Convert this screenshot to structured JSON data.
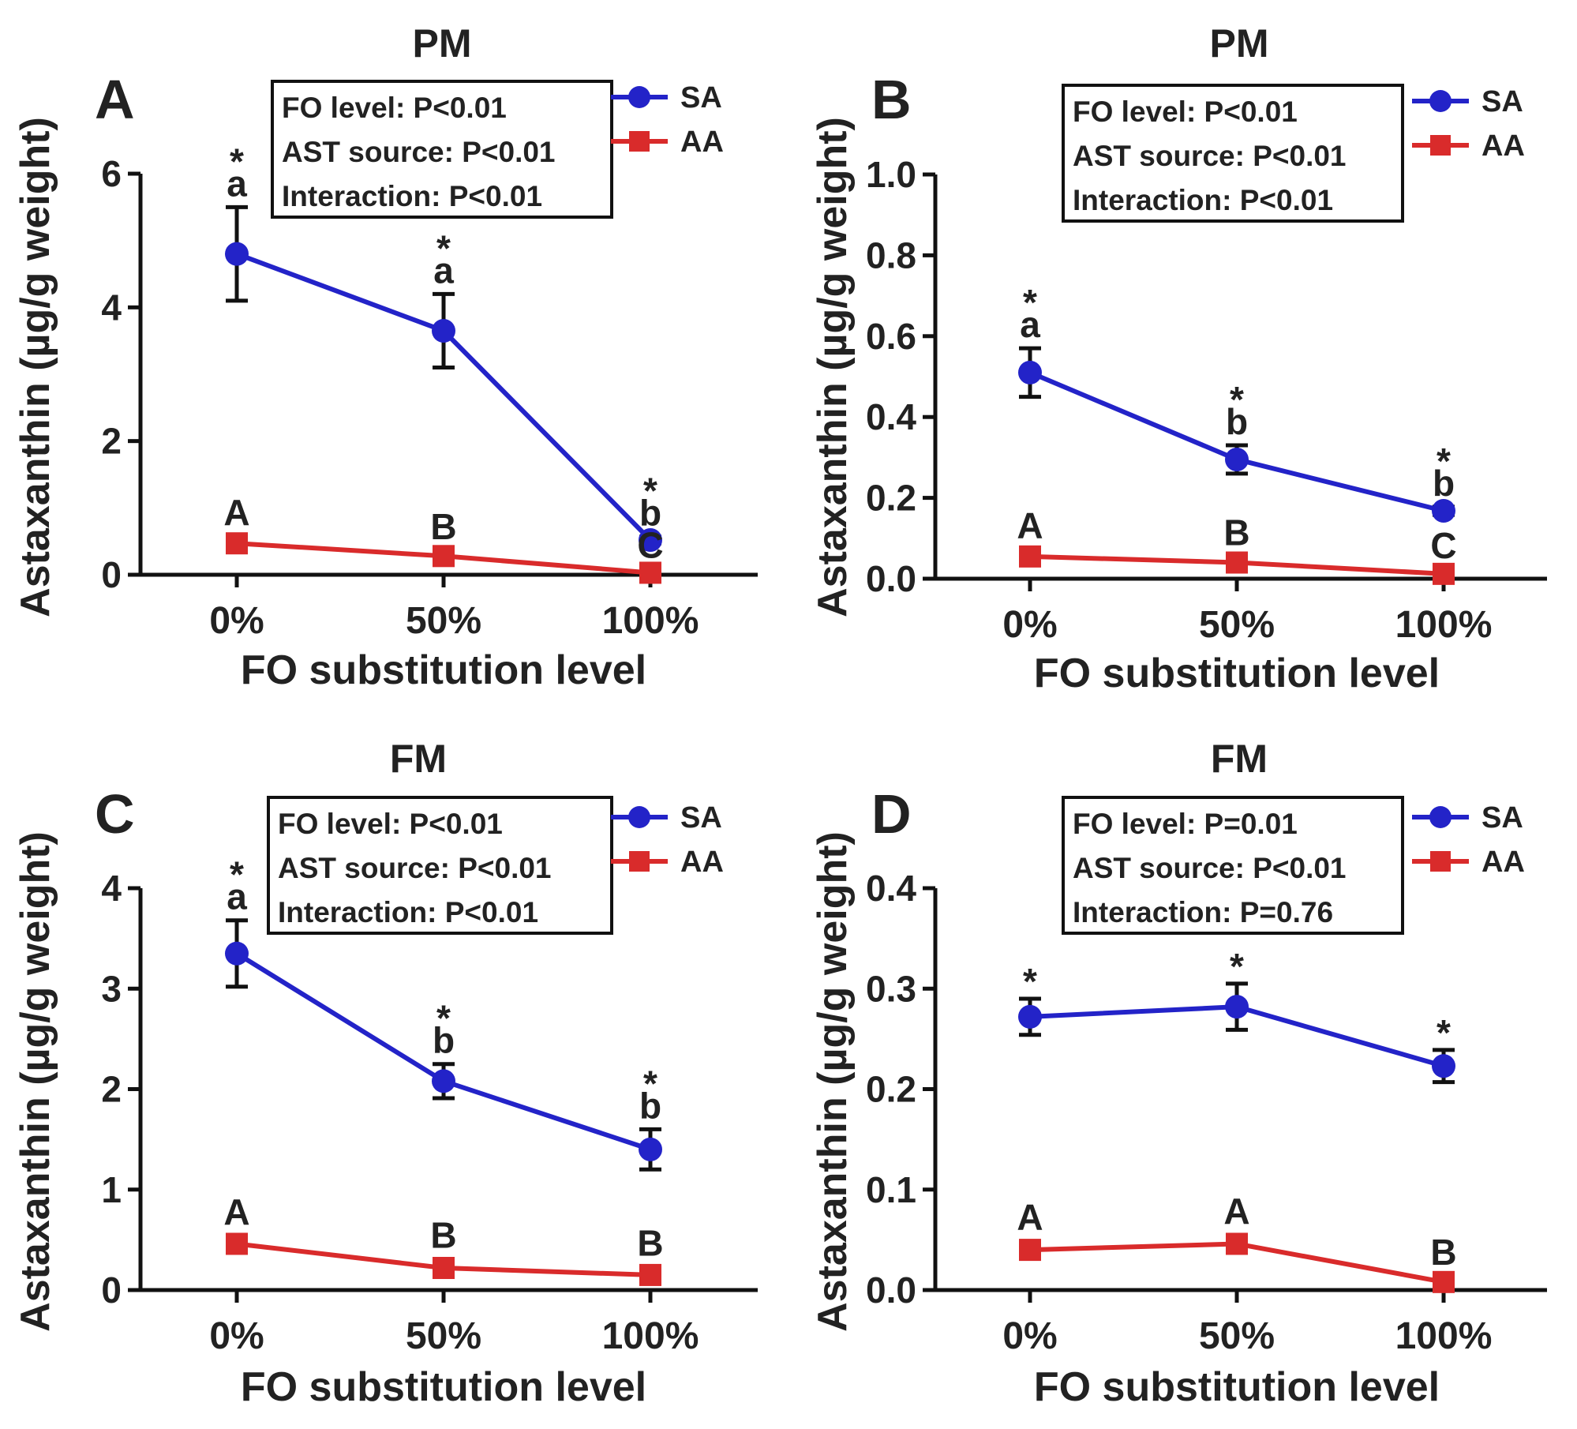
{
  "chart_data": [
    {
      "type": "line",
      "panel": "A",
      "title": "PM",
      "xlabel": "FO substitution level",
      "ylabel": "Astaxanthin (µg/g weight)",
      "categories": [
        "0%",
        "50%",
        "100%"
      ],
      "ylim": [
        0,
        6
      ],
      "yticks": [
        "0",
        "2",
        "4",
        "6"
      ],
      "series": [
        {
          "name": "SA",
          "color": "#2323c8",
          "marker": "circle",
          "values": [
            4.8,
            3.65,
            0.52
          ],
          "errors": [
            0.7,
            0.55,
            0.05
          ],
          "significance": [
            "*",
            "*",
            "*"
          ],
          "letters": [
            "a",
            "a",
            "b"
          ]
        },
        {
          "name": "AA",
          "color": "#d92b2b",
          "marker": "square",
          "values": [
            0.47,
            0.28,
            0.03
          ],
          "errors": [
            0.06,
            0.04,
            0.01
          ],
          "letters": [
            "A",
            "B",
            "C"
          ]
        }
      ],
      "stats": [
        "FO level: P<0.01",
        "AST source: P<0.01",
        "Interaction: P<0.01"
      ]
    },
    {
      "type": "line",
      "panel": "B",
      "title": "PM",
      "xlabel": "FO substitution level",
      "ylabel": "Astaxanthin (µg/g weight)",
      "categories": [
        "0%",
        "50%",
        "100%"
      ],
      "ylim": [
        0,
        1.0
      ],
      "yticks": [
        "0.0",
        "0.2",
        "0.4",
        "0.6",
        "0.8",
        "1.0"
      ],
      "series": [
        {
          "name": "SA",
          "color": "#2323c8",
          "marker": "circle",
          "values": [
            0.51,
            0.295,
            0.168
          ],
          "errors": [
            0.06,
            0.035,
            0.01
          ],
          "significance": [
            "*",
            "*",
            "*"
          ],
          "letters": [
            "a",
            "b",
            "b"
          ]
        },
        {
          "name": "AA",
          "color": "#d92b2b",
          "marker": "square",
          "values": [
            0.055,
            0.04,
            0.012
          ],
          "errors": [
            0.01,
            0.008,
            0.004
          ],
          "letters": [
            "A",
            "B",
            "C"
          ]
        }
      ],
      "stats": [
        "FO level: P<0.01",
        "AST source: P<0.01",
        "Interaction: P<0.01"
      ]
    },
    {
      "type": "line",
      "panel": "C",
      "title": "FM",
      "xlabel": "FO substitution level",
      "ylabel": "Astaxanthin (µg/g weight)",
      "categories": [
        "0%",
        "50%",
        "100%"
      ],
      "ylim": [
        0,
        4
      ],
      "yticks": [
        "0",
        "1",
        "2",
        "3",
        "4"
      ],
      "series": [
        {
          "name": "SA",
          "color": "#2323c8",
          "marker": "circle",
          "values": [
            3.35,
            2.08,
            1.4
          ],
          "errors": [
            0.33,
            0.17,
            0.2
          ],
          "significance": [
            "*",
            "*",
            "*"
          ],
          "letters": [
            "a",
            "b",
            "b"
          ]
        },
        {
          "name": "AA",
          "color": "#d92b2b",
          "marker": "square",
          "values": [
            0.46,
            0.22,
            0.15
          ],
          "errors": [
            0.05,
            0.06,
            0.05
          ],
          "letters": [
            "A",
            "B",
            "B"
          ]
        }
      ],
      "stats": [
        "FO level: P<0.01",
        "AST source: P<0.01",
        "Interaction: P<0.01"
      ]
    },
    {
      "type": "line",
      "panel": "D",
      "title": "FM",
      "xlabel": "FO substitution level",
      "ylabel": "Astaxanthin (µg/g weight)",
      "categories": [
        "0%",
        "50%",
        "100%"
      ],
      "ylim": [
        0,
        0.4
      ],
      "yticks": [
        "0.0",
        "0.1",
        "0.2",
        "0.3",
        "0.4"
      ],
      "series": [
        {
          "name": "SA",
          "color": "#2323c8",
          "marker": "circle",
          "values": [
            0.272,
            0.282,
            0.223
          ],
          "errors": [
            0.018,
            0.023,
            0.016
          ],
          "significance": [
            "*",
            "*",
            "*"
          ],
          "letters": [
            "",
            "",
            ""
          ]
        },
        {
          "name": "AA",
          "color": "#d92b2b",
          "marker": "square",
          "values": [
            0.04,
            0.046,
            0.008
          ],
          "errors": [
            0.006,
            0.006,
            0.003
          ],
          "letters": [
            "A",
            "A",
            "B"
          ]
        }
      ],
      "stats": [
        "FO level: P=0.01",
        "AST source: P<0.01",
        "Interaction: P=0.76"
      ]
    }
  ]
}
